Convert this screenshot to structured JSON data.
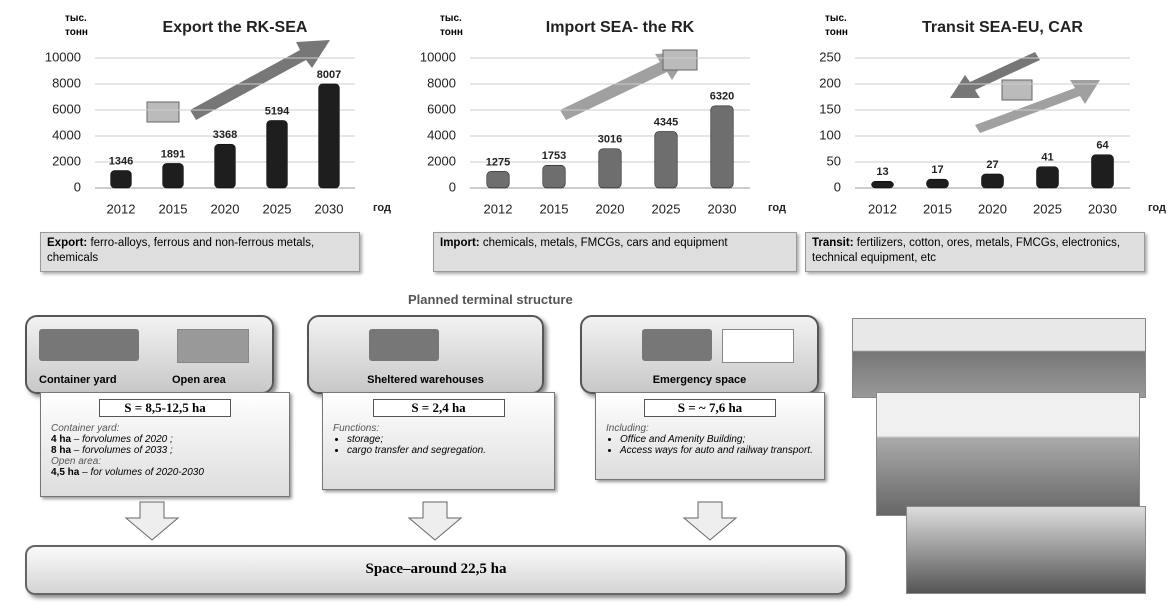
{
  "chart_data": [
    {
      "type": "bar",
      "title": "Export the RK-SEA",
      "ylabel": "тыс. тонн",
      "xlabel": "год",
      "categories": [
        "2012",
        "2015",
        "2020",
        "2025",
        "2030"
      ],
      "values": [
        1346,
        1891,
        3368,
        5194,
        8007
      ],
      "color": "#1e1e1e",
      "ylim": [
        0,
        10000
      ],
      "yticks": [
        0,
        2000,
        4000,
        6000,
        8000,
        10000
      ],
      "grid": true
    },
    {
      "type": "bar",
      "title": "Import  SEA- the RK",
      "ylabel": "тыс. тонн",
      "xlabel": "год",
      "categories": [
        "2012",
        "2015",
        "2020",
        "2025",
        "2030"
      ],
      "values": [
        1275,
        1753,
        3016,
        4345,
        6320
      ],
      "color": "#6e6e6e",
      "ylim": [
        0,
        10000
      ],
      "yticks": [
        0,
        2000,
        4000,
        6000,
        8000,
        10000
      ],
      "grid": true
    },
    {
      "type": "bar",
      "title": "Transit SEA-EU, CAR",
      "ylabel": "тыс. тонн",
      "xlabel": "год",
      "categories": [
        "2012",
        "2015",
        "2020",
        "2025",
        "2030"
      ],
      "values": [
        13,
        17,
        27,
        41,
        64
      ],
      "color": "#1e1e1e",
      "ylim": [
        0,
        250
      ],
      "yticks": [
        0,
        50,
        100,
        150,
        200,
        250
      ],
      "grid": true
    }
  ],
  "descriptions": [
    {
      "label": "Export:",
      "text": "ferro-alloys, ferrous and non-ferrous metals, chemicals"
    },
    {
      "label": "Import:",
      "text": "chemicals, metals, FMCGs, cars and equipment"
    },
    {
      "label": "Transit:",
      "text": "fertilizers, cotton, ores, metals, FMCGs, electronics, technical equipment, etc"
    }
  ],
  "section_title": "Planned terminal structure",
  "terminals": [
    {
      "captions": [
        "Container yard",
        "Open area"
      ],
      "area": "S = 8,5-12,5 ha",
      "notes": [
        {
          "heading": "Container yard:",
          "items": [
            {
              "amount": "4 ha",
              "text": "– forvolumes of 2020 ;"
            },
            {
              "amount": "8 ha",
              "text": "– forvolumes of 2033 ;"
            }
          ]
        },
        {
          "heading": "Open area:",
          "items": [
            {
              "amount": "4,5 ha",
              "text": "– for volumes of 2020-2030"
            }
          ]
        }
      ]
    },
    {
      "captions": [
        "Sheltered warehouses"
      ],
      "area": "S = 2,4 ha",
      "notes": [
        {
          "heading": "Functions:",
          "items": [
            {
              "text": "storage;"
            },
            {
              "text": "cargo transfer and segregation."
            }
          ]
        }
      ]
    },
    {
      "captions": [
        "Emergency space"
      ],
      "area": "S = ~ 7,6 ha",
      "notes": [
        {
          "heading": "Including:",
          "items": [
            {
              "text": "Office and Amenity Building;"
            },
            {
              "text": "Access ways for auto and railway transport."
            }
          ]
        }
      ]
    }
  ],
  "total": {
    "label": "Space–around",
    "value": "22,5 ha"
  }
}
